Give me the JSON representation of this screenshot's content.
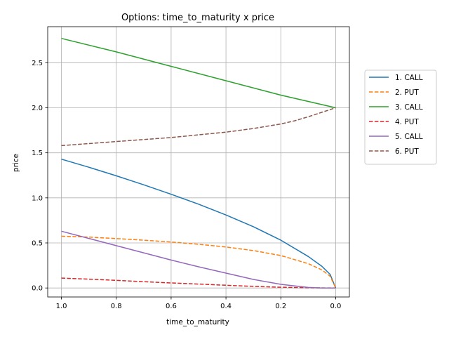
{
  "chart_data": {
    "type": "line",
    "title": "Options: time_to_maturity x price",
    "xlabel": "time_to_maturity",
    "ylabel": "price",
    "xlim": [
      1.05,
      -0.05
    ],
    "ylim": [
      -0.1,
      2.9
    ],
    "x_inverted": true,
    "grid": true,
    "legend_position": "right-outside",
    "x_ticks": [
      1.0,
      0.8,
      0.6,
      0.4,
      0.2,
      0.0
    ],
    "x_tick_labels": [
      "1.0",
      "0.8",
      "0.6",
      "0.4",
      "0.2",
      "0.0"
    ],
    "y_ticks": [
      0.0,
      0.5,
      1.0,
      1.5,
      2.0,
      2.5
    ],
    "y_tick_labels": [
      "0.0",
      "0.5",
      "1.0",
      "1.5",
      "2.0",
      "2.5"
    ],
    "series": [
      {
        "name": "1. CALL",
        "color": "#1f77b4",
        "style": "solid",
        "x": [
          1.0,
          0.9,
          0.8,
          0.7,
          0.6,
          0.5,
          0.4,
          0.3,
          0.2,
          0.1,
          0.05,
          0.02,
          0.0
        ],
        "y": [
          1.43,
          1.34,
          1.245,
          1.145,
          1.04,
          0.93,
          0.81,
          0.68,
          0.53,
          0.35,
          0.24,
          0.15,
          0.0
        ]
      },
      {
        "name": "2. PUT",
        "color": "#ff7f0e",
        "style": "dashed",
        "x": [
          1.0,
          0.9,
          0.8,
          0.7,
          0.6,
          0.5,
          0.4,
          0.3,
          0.2,
          0.1,
          0.05,
          0.02,
          0.0
        ],
        "y": [
          0.575,
          0.565,
          0.548,
          0.53,
          0.51,
          0.485,
          0.455,
          0.415,
          0.36,
          0.27,
          0.2,
          0.13,
          0.0
        ]
      },
      {
        "name": "3. CALL",
        "color": "#2ca02c",
        "style": "solid",
        "x": [
          1.0,
          0.8,
          0.6,
          0.4,
          0.2,
          0.0
        ],
        "y": [
          2.77,
          2.62,
          2.46,
          2.3,
          2.14,
          2.0
        ]
      },
      {
        "name": "4. PUT",
        "color": "#d62728",
        "style": "dashed",
        "x": [
          1.0,
          0.9,
          0.8,
          0.7,
          0.6,
          0.5,
          0.4,
          0.3,
          0.2,
          0.1,
          0.0
        ],
        "y": [
          0.11,
          0.098,
          0.085,
          0.07,
          0.056,
          0.043,
          0.03,
          0.018,
          0.008,
          0.002,
          0.0
        ]
      },
      {
        "name": "5. CALL",
        "color": "#9467bd",
        "style": "solid",
        "x": [
          1.0,
          0.9,
          0.8,
          0.7,
          0.6,
          0.5,
          0.4,
          0.3,
          0.2,
          0.1,
          0.05,
          0.0
        ],
        "y": [
          0.63,
          0.55,
          0.47,
          0.39,
          0.31,
          0.235,
          0.165,
          0.095,
          0.04,
          0.006,
          0.0,
          0.0
        ]
      },
      {
        "name": "6. PUT",
        "color": "#8c564b",
        "style": "dashed",
        "x": [
          1.0,
          0.8,
          0.6,
          0.4,
          0.3,
          0.2,
          0.15,
          0.1,
          0.05,
          0.0
        ],
        "y": [
          1.58,
          1.625,
          1.67,
          1.73,
          1.77,
          1.82,
          1.855,
          1.9,
          1.95,
          2.0
        ]
      }
    ]
  }
}
